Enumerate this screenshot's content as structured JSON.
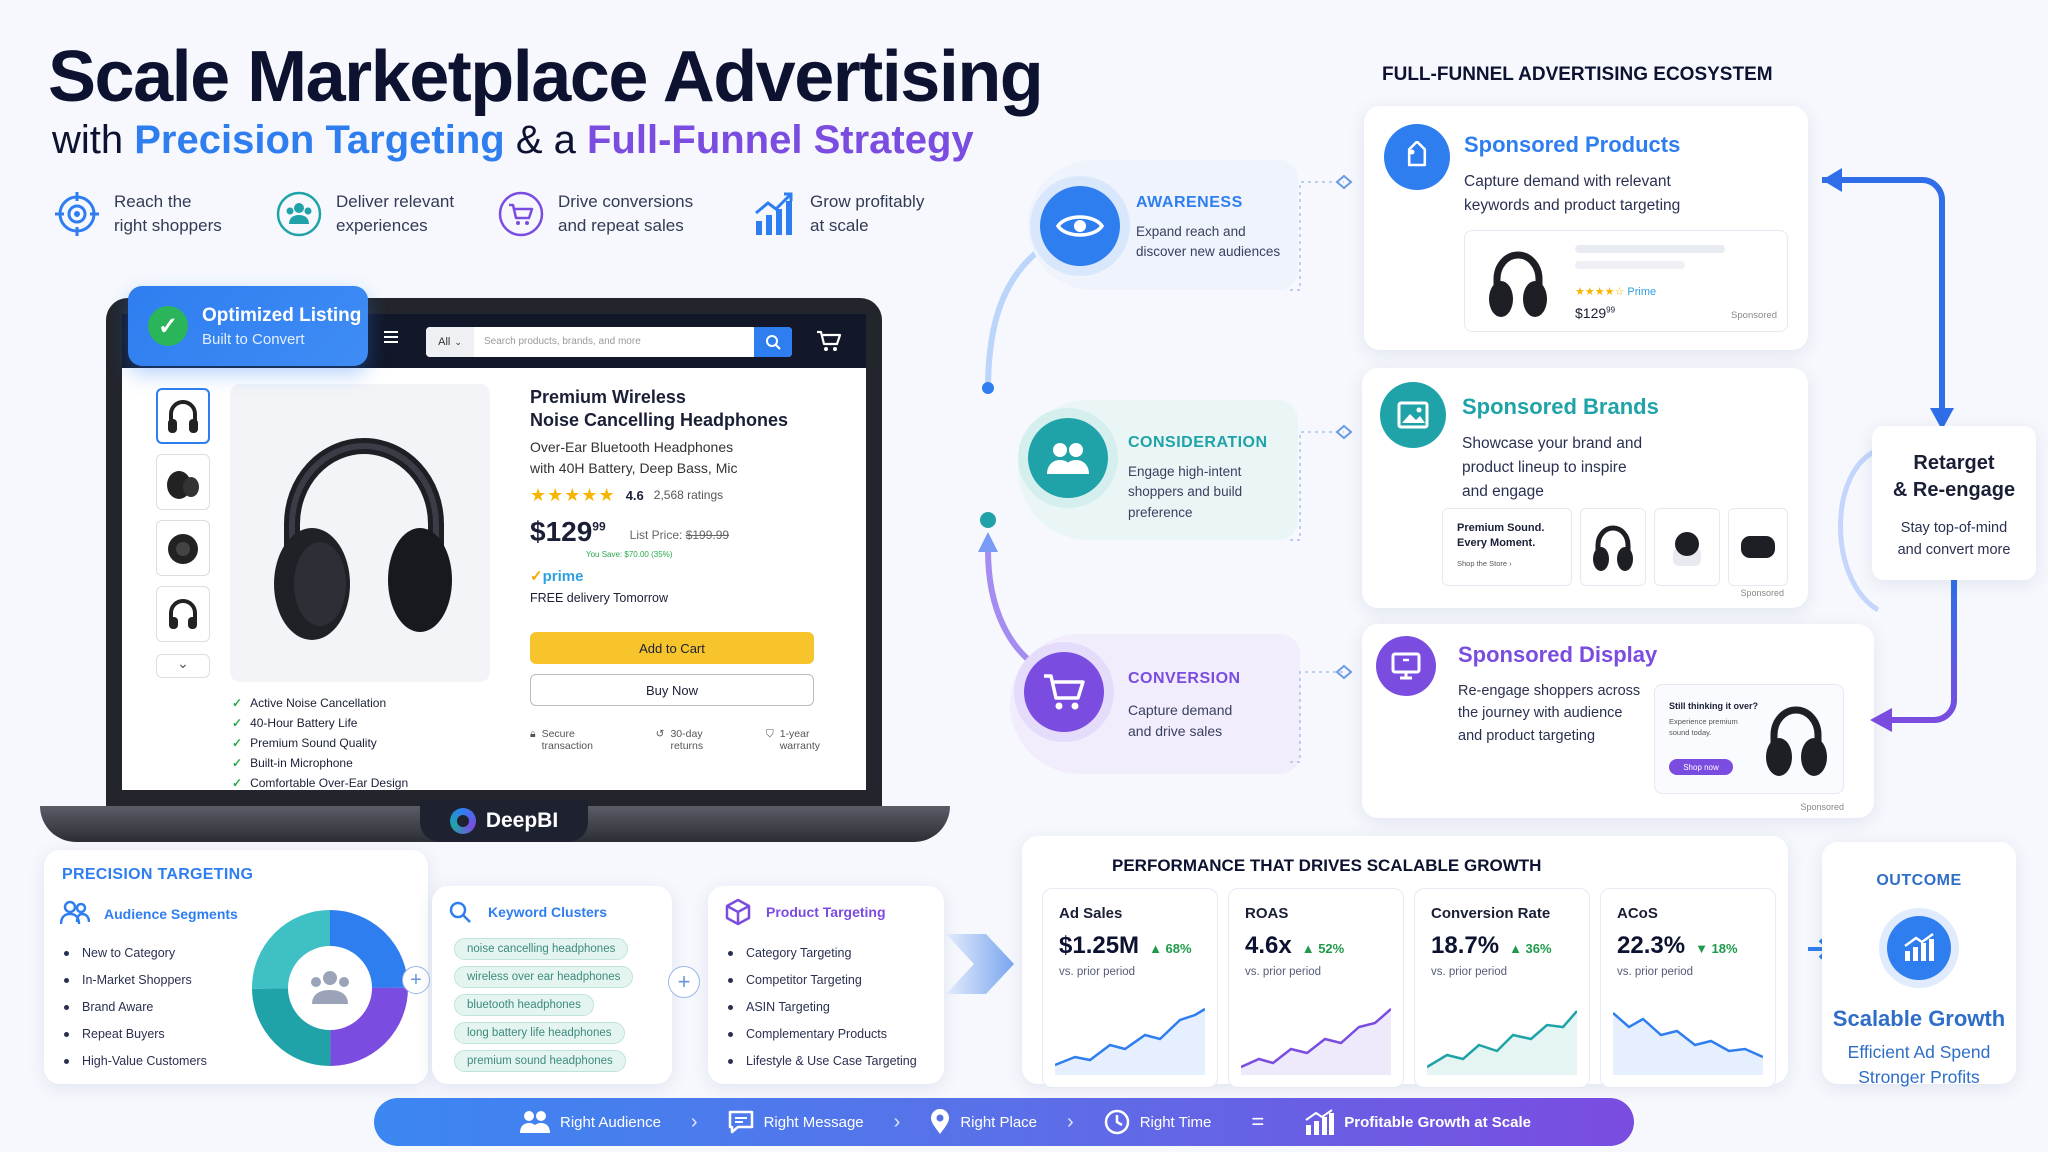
{
  "header": {
    "title": "Scale Marketplace Advertising",
    "subtitle_pre": "with ",
    "subtitle_blue": "Precision Targeting",
    "subtitle_mid": " & a ",
    "subtitle_purple": "Full-Funnel Strategy"
  },
  "benefits": [
    {
      "line1": "Reach the",
      "line2": "right shoppers",
      "icon": "target-icon"
    },
    {
      "line1": "Deliver relevant",
      "line2": "experiences",
      "icon": "users-icon"
    },
    {
      "line1": "Drive conversions",
      "line2": "and repeat sales",
      "icon": "cart-icon"
    },
    {
      "line1": "Grow profitably",
      "line2": "at scale",
      "icon": "growth-chart-icon"
    }
  ],
  "badge": {
    "title": "Optimized Listing",
    "sub": "Built to Convert"
  },
  "store": {
    "search_scope": "All",
    "search_placeholder": "Search products, brands, and more",
    "product_title_1": "Premium Wireless",
    "product_title_2": "Noise Cancelling Headphones",
    "product_desc_1": "Over-Ear Bluetooth Headphones",
    "product_desc_2": "with 40H Battery, Deep Bass, Mic",
    "rating": "4.6",
    "ratings_count": "2,568 ratings",
    "price_main": "$129",
    "price_cents": "99",
    "list_price_label": "List Price:",
    "list_price": "$199.99",
    "you_save": "You Save: $70.00 (35%)",
    "prime": "prime",
    "delivery": "FREE delivery Tomorrow",
    "add_to_cart": "Add to Cart",
    "buy_now": "Buy Now",
    "assurances": [
      {
        "l1": "Secure",
        "l2": "transaction"
      },
      {
        "l1": "30-day",
        "l2": "returns"
      },
      {
        "l1": "1-year",
        "l2": "warranty"
      }
    ],
    "features": [
      "Active Noise Cancellation",
      "40-Hour Battery Life",
      "Premium Sound Quality",
      "Built-in Microphone",
      "Comfortable Over-Ear Design"
    ],
    "brand": "DeepBI",
    "accent_yellow": "#f7c52b",
    "accent_blue": "#2f7ef0"
  },
  "funnel": {
    "heading": "FULL-FUNNEL ADVERTISING ECOSYSTEM",
    "stages": [
      {
        "name": "AWARENESS",
        "l1": "Expand reach and",
        "l2": "discover new audiences",
        "l3": "",
        "color": "#2f7ef0",
        "icon": "eye-icon"
      },
      {
        "name": "CONSIDERATION",
        "l1": "Engage high-intent",
        "l2": "shoppers and build",
        "l3": "preference",
        "color": "#1fa3a8",
        "icon": "users-icon"
      },
      {
        "name": "CONVERSION",
        "l1": "Capture demand",
        "l2": "and drive sales",
        "l3": "",
        "color": "#7a4ce0",
        "icon": "cart-icon"
      }
    ],
    "ads": [
      {
        "title": "Sponsored Products",
        "l1": "Capture demand with relevant",
        "l2": "keywords and product targeting",
        "l3": "",
        "color": "#2f7ef0",
        "icon": "tag-icon",
        "mock": {
          "stars": "★★★★☆",
          "prime": "Prime",
          "price": "$129",
          "cents": "99",
          "sponsored": "Sponsored"
        }
      },
      {
        "title": "Sponsored Brands",
        "l1": "Showcase your brand and",
        "l2": "product lineup to inspire",
        "l3": "and engage",
        "color": "#1fa3a8",
        "icon": "image-icon",
        "mock": {
          "line1": "Premium Sound.",
          "line2": "Every Moment.",
          "link": "Shop the Store ›",
          "sponsored": "Sponsored"
        }
      },
      {
        "title": "Sponsored Display",
        "l1": "Re-engage shoppers across",
        "l2": "the journey with audience",
        "l3": "and product targeting",
        "color": "#7a4ce0",
        "icon": "monitor-icon",
        "mock": {
          "line1": "Still thinking it over?",
          "line2": "Experience premium",
          "line3": "sound today.",
          "cta": "Shop now",
          "sponsored": "Sponsored"
        }
      }
    ],
    "retarget": {
      "title1": "Retarget",
      "title2": "& Re-engage",
      "l1": "Stay top-of-mind",
      "l2": "and convert more"
    }
  },
  "targeting": {
    "heading": "PRECISION TARGETING",
    "audience": {
      "title": "Audience Segments",
      "items": [
        "New to Category",
        "In-Market Shoppers",
        "Brand Aware",
        "Repeat Buyers",
        "High-Value Customers"
      ]
    },
    "keywords": {
      "title": "Keyword Clusters",
      "items": [
        "noise cancelling headphones",
        "wireless over ear headphones",
        "bluetooth headphones",
        "long battery life headphones",
        "premium sound headphones"
      ]
    },
    "product": {
      "title": "Product Targeting",
      "items": [
        "Category Targeting",
        "Competitor Targeting",
        "ASIN Targeting",
        "Complementary Products",
        "Lifestyle & Use Case Targeting"
      ]
    }
  },
  "performance": {
    "heading": "PERFORMANCE THAT DRIVES SCALABLE GROWTH",
    "kpis": [
      {
        "label": "Ad Sales",
        "value": "$1.25M",
        "change": "▲ 68%",
        "prior": "vs. prior period",
        "dir": "up",
        "color": "#2f7ef0"
      },
      {
        "label": "ROAS",
        "value": "4.6x",
        "change": "▲ 52%",
        "prior": "vs. prior period",
        "dir": "up",
        "color": "#7a4ce0"
      },
      {
        "label": "Conversion Rate",
        "value": "18.7%",
        "change": "▲ 36%",
        "prior": "vs. prior period",
        "dir": "up",
        "color": "#1fa3a8"
      },
      {
        "label": "ACoS",
        "value": "22.3%",
        "change": "▼ 18%",
        "prior": "vs. prior period",
        "dir": "down",
        "color": "#2f7ef0"
      }
    ]
  },
  "outcome": {
    "heading": "OUTCOME",
    "title": "Scalable Growth",
    "l1": "Efficient Ad Spend",
    "l2": "Stronger Profits"
  },
  "bottom_bar": {
    "items": [
      {
        "label": "Right Audience",
        "icon": "users-icon"
      },
      {
        "label": "Right Message",
        "icon": "message-icon"
      },
      {
        "label": "Right Place",
        "icon": "pin-icon"
      },
      {
        "label": "Right Time",
        "icon": "clock-icon"
      }
    ],
    "equals": "=",
    "result": "Profitable Growth at Scale"
  }
}
